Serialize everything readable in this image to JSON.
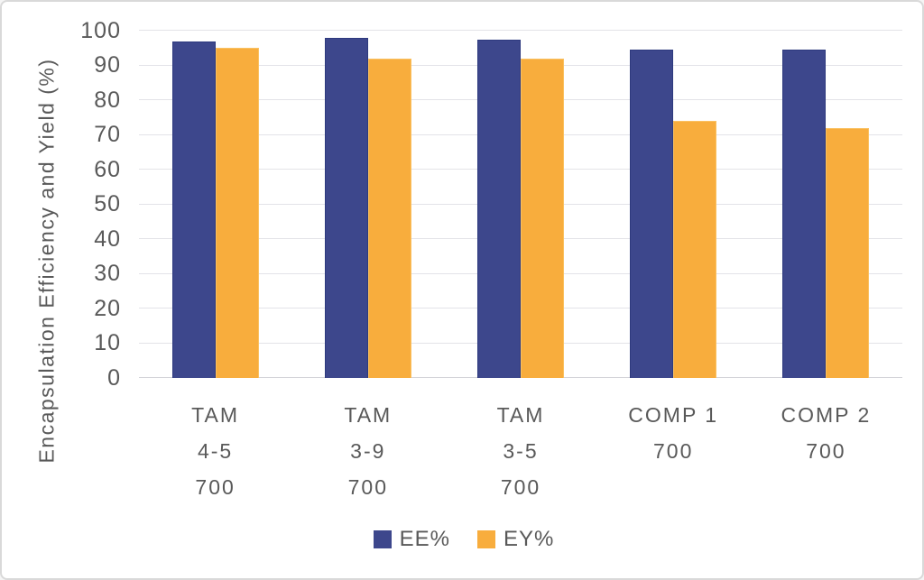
{
  "chart_data": {
    "type": "bar",
    "title": "",
    "xlabel": "",
    "ylabel": "Encapsulation Efficiency and Yield (%)",
    "ylim": [
      0,
      100
    ],
    "yticks": [
      0,
      10,
      20,
      30,
      40,
      50,
      60,
      70,
      80,
      90,
      100
    ],
    "grid": "horizontal",
    "legend_position": "bottom",
    "categories": [
      [
        "TAM",
        "4-5",
        "700"
      ],
      [
        "TAM",
        "3-9",
        "700"
      ],
      [
        "TAM",
        "3-5",
        "700"
      ],
      [
        "COMP 1",
        "700"
      ],
      [
        "COMP 2",
        "700"
      ]
    ],
    "series": [
      {
        "name": "EE%",
        "color": "#3d478c",
        "values": [
          97,
          98,
          97.5,
          94.5,
          94.5
        ]
      },
      {
        "name": "EY%",
        "color": "#f8ad3d",
        "values": [
          95,
          92,
          92,
          74,
          72
        ]
      }
    ]
  },
  "colors": {
    "bar_blue": "#3d478c",
    "bar_orange": "#f8ad3d",
    "gridline": "#e3e3e8",
    "text": "#595959",
    "frame_border": "#d9d9d9",
    "background": "#ffffff"
  }
}
